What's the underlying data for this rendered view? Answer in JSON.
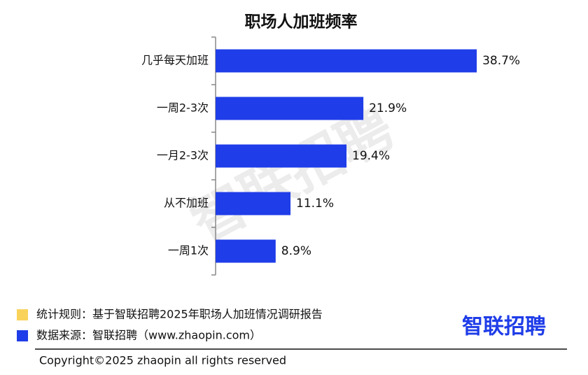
{
  "chart_data": {
    "type": "bar",
    "orientation": "horizontal",
    "title": "职场人加班频率",
    "categories": [
      "几乎每天加班",
      "一周2-3次",
      "一月2-3次",
      "从不加班",
      "一周1次"
    ],
    "values": [
      38.7,
      21.9,
      19.4,
      11.1,
      8.9
    ],
    "value_labels": [
      "38.7%",
      "21.9%",
      "19.4%",
      "11.1%",
      "8.9%"
    ],
    "color": "#1f3de8"
  },
  "watermark": "智联招聘",
  "notes": [
    {
      "color": "#f9d25a",
      "text": "统计规则：基于智联招聘2025年职场人加班情况调研报告"
    },
    {
      "color": "#1f3de8",
      "text": "数据来源：智联招聘（www.zhaopin.com）"
    }
  ],
  "logo": "智联招聘",
  "copyright": "Copyright©2025 zhaopin all rights reserved"
}
